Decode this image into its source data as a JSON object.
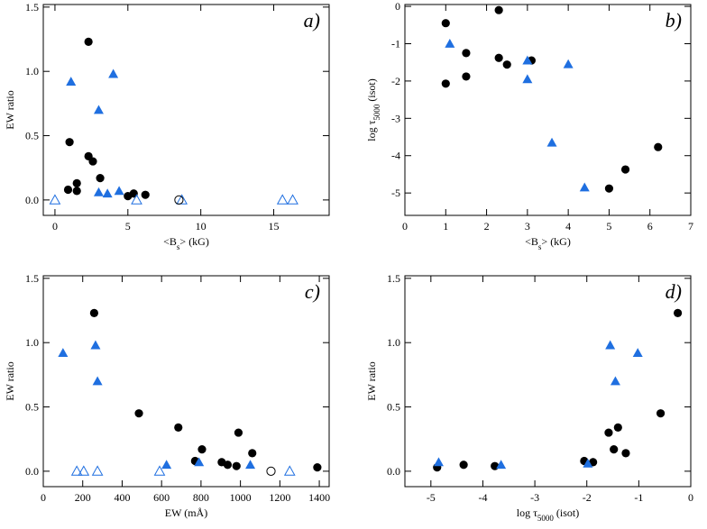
{
  "colors": {
    "filled_circle": "#000000",
    "triangle": "#1f6fe0",
    "axis": "#000000"
  },
  "chart_data": [
    {
      "type": "scatter",
      "panel_label": "a)",
      "xlabel": "<B_s> (kG)",
      "ylabel": "EW ratio",
      "xlim": [
        -0.8,
        18.8
      ],
      "ylim": [
        -0.12,
        1.52
      ],
      "xticks": [
        0,
        5,
        10,
        15
      ],
      "yticks": [
        0.0,
        0.5,
        1.0,
        1.5
      ],
      "xtick_labels": [
        "0",
        "5",
        "10",
        "15"
      ],
      "ytick_labels": [
        "0.0",
        "0.5",
        "1.0",
        "1.5"
      ],
      "series": [
        {
          "marker": "filled-circle",
          "points": [
            [
              2.3,
              1.23
            ],
            [
              1.0,
              0.45
            ],
            [
              2.3,
              0.34
            ],
            [
              2.6,
              0.3
            ],
            [
              3.1,
              0.17
            ],
            [
              0.9,
              0.08
            ],
            [
              1.5,
              0.13
            ],
            [
              1.5,
              0.07
            ],
            [
              5.0,
              0.03
            ],
            [
              5.4,
              0.05
            ],
            [
              6.2,
              0.04
            ]
          ]
        },
        {
          "marker": "filled-triangle",
          "points": [
            [
              1.1,
              0.92
            ],
            [
              3.0,
              0.7
            ],
            [
              4.0,
              0.98
            ],
            [
              3.0,
              0.06
            ],
            [
              3.6,
              0.05
            ],
            [
              4.4,
              0.07
            ]
          ]
        },
        {
          "marker": "open-triangle",
          "points": [
            [
              0.0,
              0.0
            ],
            [
              5.6,
              0.0
            ],
            [
              8.7,
              0.0
            ],
            [
              15.6,
              0.0
            ],
            [
              16.3,
              0.0
            ]
          ]
        },
        {
          "marker": "open-circle",
          "points": [
            [
              8.5,
              0.0
            ]
          ]
        }
      ]
    },
    {
      "type": "scatter",
      "panel_label": "b)",
      "xlabel": "<B_s> (kG)",
      "ylabel": "log τ_5000 (isot)",
      "xlim": [
        0,
        7
      ],
      "ylim": [
        -5.6,
        0.05
      ],
      "xticks": [
        0,
        1,
        2,
        3,
        4,
        5,
        6,
        7
      ],
      "yticks": [
        0,
        -1,
        -2,
        -3,
        -4,
        -5
      ],
      "xtick_labels": [
        "0",
        "1",
        "2",
        "3",
        "4",
        "5",
        "6",
        "7"
      ],
      "ytick_labels": [
        "0",
        "-1",
        "-2",
        "-3",
        "-4",
        "-5"
      ],
      "series": [
        {
          "marker": "filled-circle",
          "points": [
            [
              2.3,
              -0.1
            ],
            [
              1.0,
              -0.45
            ],
            [
              1.0,
              -2.07
            ],
            [
              1.5,
              -1.25
            ],
            [
              1.5,
              -1.88
            ],
            [
              2.3,
              -1.38
            ],
            [
              2.5,
              -1.56
            ],
            [
              3.1,
              -1.45
            ],
            [
              5.0,
              -4.88
            ],
            [
              5.4,
              -4.37
            ],
            [
              6.2,
              -3.77
            ]
          ]
        },
        {
          "marker": "filled-triangle",
          "points": [
            [
              1.1,
              -1.0
            ],
            [
              3.0,
              -1.45
            ],
            [
              3.0,
              -1.95
            ],
            [
              4.0,
              -1.55
            ],
            [
              3.6,
              -3.65
            ],
            [
              4.4,
              -4.85
            ]
          ]
        }
      ]
    },
    {
      "type": "scatter",
      "panel_label": "c)",
      "xlabel": "EW (mÅ)",
      "ylabel": "EW ratio",
      "xlim": [
        0,
        1450
      ],
      "ylim": [
        -0.12,
        1.52
      ],
      "xticks": [
        0,
        200,
        400,
        600,
        800,
        1000,
        1200,
        1400
      ],
      "yticks": [
        0.0,
        0.5,
        1.0,
        1.5
      ],
      "xtick_labels": [
        "0",
        "200",
        "400",
        "600",
        "800",
        "1000",
        "1200",
        "1400"
      ],
      "ytick_labels": [
        "0.0",
        "0.5",
        "1.0",
        "1.5"
      ],
      "series": [
        {
          "marker": "filled-circle",
          "points": [
            [
              258,
              1.23
            ],
            [
              485,
              0.45
            ],
            [
              685,
              0.34
            ],
            [
              990,
              0.3
            ],
            [
              805,
              0.17
            ],
            [
              1060,
              0.14
            ],
            [
              770,
              0.08
            ],
            [
              905,
              0.07
            ],
            [
              935,
              0.05
            ],
            [
              980,
              0.04
            ],
            [
              1390,
              0.03
            ]
          ]
        },
        {
          "marker": "filled-triangle",
          "points": [
            [
              100,
              0.92
            ],
            [
              265,
              0.98
            ],
            [
              275,
              0.7
            ],
            [
              625,
              0.05
            ],
            [
              790,
              0.07
            ],
            [
              1050,
              0.05
            ]
          ]
        },
        {
          "marker": "open-triangle",
          "points": [
            [
              170,
              0.0
            ],
            [
              205,
              0.0
            ],
            [
              275,
              0.0
            ],
            [
              590,
              0.0
            ],
            [
              1250,
              0.0
            ]
          ]
        },
        {
          "marker": "open-circle",
          "points": [
            [
              1155,
              0.0
            ]
          ]
        }
      ]
    },
    {
      "type": "scatter",
      "panel_label": "d)",
      "xlabel": "log τ_5000 (isot)",
      "ylabel": "EW ratio",
      "xlim": [
        -5.5,
        0
      ],
      "ylim": [
        -0.12,
        1.52
      ],
      "xticks": [
        -5,
        -4,
        -3,
        -2,
        -1,
        0
      ],
      "yticks": [
        0.0,
        0.5,
        1.0,
        1.5
      ],
      "xtick_labels": [
        "-5",
        "-4",
        "-3",
        "-2",
        "-1",
        "0"
      ],
      "ytick_labels": [
        "0.0",
        "0.5",
        "1.0",
        "1.5"
      ],
      "series": [
        {
          "marker": "filled-circle",
          "points": [
            [
              -0.25,
              1.23
            ],
            [
              -0.58,
              0.45
            ],
            [
              -1.58,
              0.3
            ],
            [
              -1.4,
              0.34
            ],
            [
              -1.48,
              0.17
            ],
            [
              -1.25,
              0.14
            ],
            [
              -2.05,
              0.08
            ],
            [
              -1.88,
              0.07
            ],
            [
              -4.88,
              0.03
            ],
            [
              -4.37,
              0.05
            ],
            [
              -3.77,
              0.04
            ]
          ]
        },
        {
          "marker": "filled-triangle",
          "points": [
            [
              -1.55,
              0.98
            ],
            [
              -1.02,
              0.92
            ],
            [
              -1.45,
              0.7
            ],
            [
              -1.98,
              0.06
            ],
            [
              -3.65,
              0.05
            ],
            [
              -4.85,
              0.07
            ]
          ]
        }
      ]
    }
  ]
}
